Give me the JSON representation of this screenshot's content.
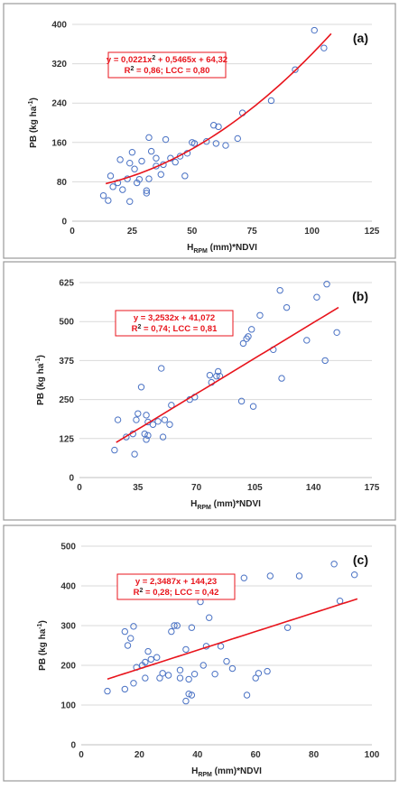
{
  "chart_data": [
    {
      "type": "scatter",
      "panel_label": "(a)",
      "ylabel_main": "PB (kg ha",
      "ylabel_sup": "-1",
      "ylabel_end": ")",
      "xlabel_h": "H",
      "xlabel_sub": "RPM",
      "xlabel_rest": " (mm)*NDVI",
      "equation_line1": "y = 0,0221x",
      "equation_line1_sup": "2",
      "equation_line1_rest": " + 0,5465x + 64,32",
      "equation_line2": "R",
      "equation_line2_sup": "2",
      "equation_line2_rest": " = 0,86; LCC = 0,80",
      "xlim": [
        0,
        125
      ],
      "ylim": [
        0,
        400
      ],
      "xticks": [
        "0",
        "25",
        "50",
        "75",
        "100",
        "125"
      ],
      "yticks": [
        "0",
        "80",
        "160",
        "240",
        "320",
        "400"
      ],
      "fit": {
        "kind": "quadratic",
        "a": 0.0221,
        "b": 0.5465,
        "c": 64.32,
        "xmin": 14,
        "xmax": 108
      },
      "points": [
        [
          13,
          52
        ],
        [
          15,
          42
        ],
        [
          16,
          92
        ],
        [
          17,
          70
        ],
        [
          19,
          78
        ],
        [
          20,
          125
        ],
        [
          21,
          64
        ],
        [
          23,
          86
        ],
        [
          24,
          40
        ],
        [
          24,
          118
        ],
        [
          25,
          140
        ],
        [
          26,
          106
        ],
        [
          27,
          78
        ],
        [
          28,
          85
        ],
        [
          29,
          122
        ],
        [
          31,
          62
        ],
        [
          31,
          57
        ],
        [
          32,
          86
        ],
        [
          32,
          170
        ],
        [
          33,
          142
        ],
        [
          35,
          112
        ],
        [
          35,
          128
        ],
        [
          37,
          95
        ],
        [
          38,
          115
        ],
        [
          39,
          166
        ],
        [
          41,
          128
        ],
        [
          43,
          120
        ],
        [
          45,
          132
        ],
        [
          47,
          92
        ],
        [
          48,
          138
        ],
        [
          50,
          160
        ],
        [
          51,
          158
        ],
        [
          56,
          162
        ],
        [
          59,
          195
        ],
        [
          60,
          158
        ],
        [
          61,
          192
        ],
        [
          64,
          154
        ],
        [
          69,
          168
        ],
        [
          71,
          220
        ],
        [
          83,
          245
        ],
        [
          93,
          308
        ],
        [
          101,
          388
        ],
        [
          105,
          352
        ]
      ]
    },
    {
      "type": "scatter",
      "panel_label": "(b)",
      "ylabel_main": "PB (kg ha",
      "ylabel_sup": "-1",
      "ylabel_end": ")",
      "xlabel_h": "H",
      "xlabel_sub": "RPM",
      "xlabel_rest": " (mm)*NDVI",
      "equation_line1": "y = 3,2532x + 41,072",
      "equation_line1_sup": "",
      "equation_line1_rest": "",
      "equation_line2": "R",
      "equation_line2_sup": "2",
      "equation_line2_rest": " = 0,74; LCC = 0,81",
      "xlim": [
        0,
        175
      ],
      "ylim": [
        0,
        625
      ],
      "xticks": [
        "0",
        "35",
        "70",
        "105",
        "140",
        "175"
      ],
      "yticks": [
        "0",
        "125",
        "250",
        "375",
        "500",
        "625"
      ],
      "fit": {
        "kind": "linear",
        "a": 0,
        "b": 3.2532,
        "c": 41.072,
        "xmin": 22,
        "xmax": 155
      },
      "points": [
        [
          21,
          88
        ],
        [
          23,
          185
        ],
        [
          28,
          130
        ],
        [
          32,
          140
        ],
        [
          33,
          75
        ],
        [
          34,
          185
        ],
        [
          35,
          205
        ],
        [
          37,
          290
        ],
        [
          39,
          140
        ],
        [
          40,
          122
        ],
        [
          40,
          200
        ],
        [
          41,
          135
        ],
        [
          41,
          178
        ],
        [
          44,
          170
        ],
        [
          47,
          180
        ],
        [
          49,
          350
        ],
        [
          50,
          130
        ],
        [
          51,
          185
        ],
        [
          54,
          170
        ],
        [
          55,
          232
        ],
        [
          66,
          250
        ],
        [
          69,
          258
        ],
        [
          78,
          328
        ],
        [
          79,
          305
        ],
        [
          82,
          325
        ],
        [
          83,
          340
        ],
        [
          84,
          325
        ],
        [
          97,
          245
        ],
        [
          98,
          430
        ],
        [
          100,
          445
        ],
        [
          101,
          452
        ],
        [
          103,
          475
        ],
        [
          104,
          228
        ],
        [
          108,
          520
        ],
        [
          116,
          410
        ],
        [
          120,
          600
        ],
        [
          121,
          318
        ],
        [
          124,
          545
        ],
        [
          136,
          440
        ],
        [
          142,
          578
        ],
        [
          147,
          375
        ],
        [
          148,
          620
        ],
        [
          154,
          465
        ]
      ]
    },
    {
      "type": "scatter",
      "panel_label": "(c)",
      "ylabel_main": "PB (kg ha",
      "ylabel_sup": "-1",
      "ylabel_end": ")",
      "xlabel_h": "H",
      "xlabel_sub": "RPM",
      "xlabel_rest": " (mm)*NDVI",
      "equation_line1": "y = 2,3487x + 144,23",
      "equation_line1_sup": "",
      "equation_line1_rest": "",
      "equation_line2": "R",
      "equation_line2_sup": "2",
      "equation_line2_rest": " = 0,28; LCC = 0,42",
      "xlim": [
        0,
        100
      ],
      "ylim": [
        0,
        500
      ],
      "xticks": [
        "0",
        "20",
        "40",
        "60",
        "80",
        "100"
      ],
      "yticks": [
        "0",
        "100",
        "200",
        "300",
        "400",
        "500"
      ],
      "fit": {
        "kind": "linear",
        "a": 0,
        "b": 2.3487,
        "c": 144.23,
        "xmin": 9,
        "xmax": 95
      },
      "points": [
        [
          9,
          135
        ],
        [
          15,
          285
        ],
        [
          15,
          140
        ],
        [
          16,
          250
        ],
        [
          17,
          268
        ],
        [
          18,
          298
        ],
        [
          18,
          155
        ],
        [
          19,
          195
        ],
        [
          21,
          200
        ],
        [
          22,
          168
        ],
        [
          22,
          208
        ],
        [
          23,
          235
        ],
        [
          24,
          215
        ],
        [
          26,
          220
        ],
        [
          27,
          168
        ],
        [
          28,
          180
        ],
        [
          30,
          175
        ],
        [
          31,
          285
        ],
        [
          32,
          300
        ],
        [
          33,
          300
        ],
        [
          34,
          188
        ],
        [
          34,
          168
        ],
        [
          36,
          110
        ],
        [
          36,
          240
        ],
        [
          37,
          128
        ],
        [
          37,
          165
        ],
        [
          38,
          125
        ],
        [
          38,
          295
        ],
        [
          39,
          178
        ],
        [
          41,
          360
        ],
        [
          42,
          200
        ],
        [
          43,
          248
        ],
        [
          44,
          320
        ],
        [
          46,
          178
        ],
        [
          48,
          248
        ],
        [
          50,
          210
        ],
        [
          52,
          192
        ],
        [
          56,
          420
        ],
        [
          57,
          125
        ],
        [
          60,
          168
        ],
        [
          61,
          180
        ],
        [
          64,
          185
        ],
        [
          65,
          425
        ],
        [
          71,
          295
        ],
        [
          75,
          425
        ],
        [
          87,
          455
        ],
        [
          89,
          362
        ],
        [
          94,
          428
        ]
      ]
    }
  ]
}
